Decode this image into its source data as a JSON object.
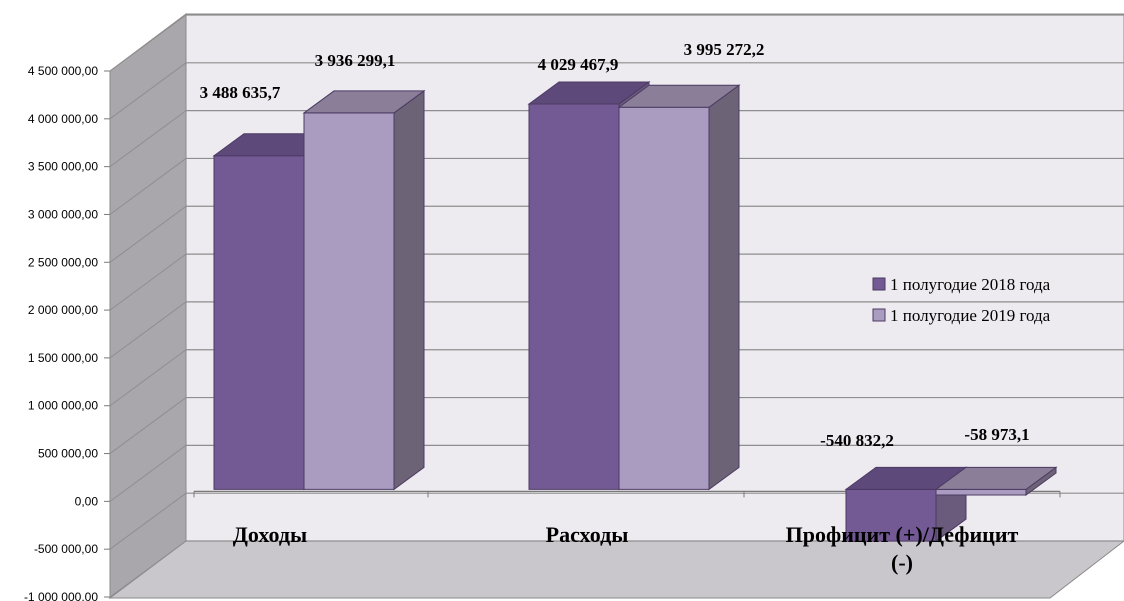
{
  "chart_data": {
    "type": "bar",
    "style": "3d-clustered-column",
    "categories": [
      "Доходы",
      "Расходы",
      "Профицит (+)/Дефицит (-)"
    ],
    "series": [
      {
        "name": "1 полугодие 2018 года",
        "values": [
          3488635.7,
          4029467.9,
          -540832.2
        ],
        "labels": [
          "3 488 635,7",
          "4 029 467,9",
          "-540 832,2"
        ],
        "color": "#735A94"
      },
      {
        "name": "1 полугодие 2019 года",
        "values": [
          3936299.1,
          3995272.2,
          -58973.1
        ],
        "labels": [
          "3 936 299,1",
          "3 995 272,2",
          "-58 973,1"
        ],
        "color": "#AA9BC1"
      }
    ],
    "yticks": [
      {
        "value": 4500000,
        "label": "4 500 000,00"
      },
      {
        "value": 4000000,
        "label": "4 000 000,00"
      },
      {
        "value": 3500000,
        "label": "3 500 000,00"
      },
      {
        "value": 3000000,
        "label": "3 000 000,00"
      },
      {
        "value": 2500000,
        "label": "2 500 000,00"
      },
      {
        "value": 2000000,
        "label": "2 000 000,00"
      },
      {
        "value": 1500000,
        "label": "1 500 000,00"
      },
      {
        "value": 1000000,
        "label": "1 000 000,00"
      },
      {
        "value": 500000,
        "label": "500 000,00"
      },
      {
        "value": 0,
        "label": "0,00"
      },
      {
        "value": -500000,
        "label": "-500 000,00"
      },
      {
        "value": -1000000,
        "label": "-1 000 000,00"
      }
    ],
    "ylim": [
      -1000000,
      4500000
    ],
    "grid": true,
    "legend_position": "right",
    "colors": {
      "back_wall": "#EDEAF0",
      "side_wall": "#A9A7AC",
      "floor": "#C9C7CC",
      "grid": "#8E8E8E",
      "series1_side": "#6A5A7C",
      "series2_side": "#6D6377",
      "series2_top": "#8A7E98",
      "series1_top": "#5E4A7A"
    }
  }
}
